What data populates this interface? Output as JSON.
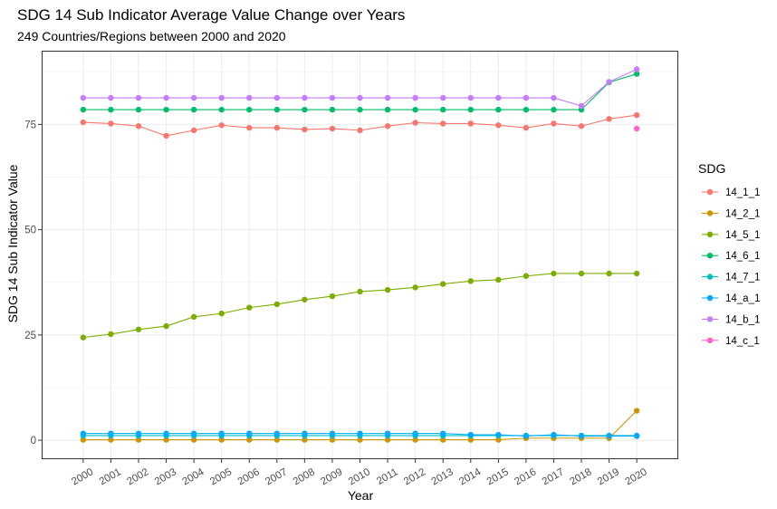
{
  "chart_data": {
    "type": "line",
    "title": "SDG 14 Sub Indicator Average Value Change over Years",
    "subtitle": "249 Countries/Regions between 2000 and 2020",
    "xlabel": "Year",
    "ylabel": "SDG 14 Sub Indicator Value",
    "x": [
      2000,
      2001,
      2002,
      2003,
      2004,
      2005,
      2006,
      2007,
      2008,
      2009,
      2010,
      2011,
      2012,
      2013,
      2014,
      2015,
      2016,
      2017,
      2018,
      2019,
      2020
    ],
    "x_tick_labels": [
      "2000",
      "2001",
      "2002",
      "2003",
      "2004",
      "2005",
      "2006",
      "2007",
      "2008",
      "2009",
      "2010",
      "2011",
      "2012",
      "2013",
      "2014",
      "2015",
      "2016",
      "2017",
      "2018",
      "2019",
      "2020"
    ],
    "y_ticks": [
      0,
      25,
      50,
      75
    ],
    "y_tick_labels": [
      "0",
      "25",
      "50",
      "75"
    ],
    "ylim": [
      -4.5,
      92.5
    ],
    "grid": true,
    "legend": {
      "title": "SDG",
      "position": "right"
    },
    "series": [
      {
        "name": "14_1_1",
        "color": "#F8766D",
        "values": [
          75.5,
          75.2,
          74.6,
          72.3,
          73.6,
          74.8,
          74.2,
          74.2,
          73.8,
          74.0,
          73.6,
          74.6,
          75.4,
          75.2,
          75.2,
          74.8,
          74.2,
          75.2,
          74.6,
          76.3,
          77.2
        ]
      },
      {
        "name": "14_2_1",
        "color": "#CD9600",
        "values": [
          0.1,
          0.1,
          0.1,
          0.1,
          0.1,
          0.1,
          0.1,
          0.1,
          0.1,
          0.1,
          0.1,
          0.1,
          0.1,
          0.1,
          0.1,
          0.1,
          0.5,
          0.5,
          0.5,
          0.5,
          7.0
        ]
      },
      {
        "name": "14_5_1",
        "color": "#7CAE00",
        "values": [
          24.4,
          25.2,
          26.3,
          27.1,
          29.3,
          30.1,
          31.5,
          32.3,
          33.4,
          34.2,
          35.3,
          35.7,
          36.3,
          37.1,
          37.8,
          38.1,
          39.0,
          39.6,
          39.6,
          39.6,
          39.6
        ]
      },
      {
        "name": "14_6_1",
        "color": "#00BE67",
        "values": [
          78.5,
          78.5,
          78.5,
          78.5,
          78.5,
          78.5,
          78.5,
          78.5,
          78.5,
          78.5,
          78.5,
          78.5,
          78.5,
          78.5,
          78.5,
          78.5,
          78.5,
          78.5,
          78.5,
          85.0,
          87.0
        ]
      },
      {
        "name": "14_7_1",
        "color": "#00BFC4",
        "values": [
          1.1,
          1.1,
          1.1,
          1.1,
          1.1,
          1.1,
          1.1,
          1.1,
          1.1,
          1.1,
          1.1,
          1.1,
          1.1,
          1.1,
          1.1,
          1.1,
          1.1,
          1.1,
          1.1,
          1.1,
          1.1
        ]
      },
      {
        "name": "14_a_1",
        "color": "#00A9FF",
        "values": [
          1.6,
          1.6,
          1.6,
          1.6,
          1.6,
          1.6,
          1.6,
          1.6,
          1.6,
          1.6,
          1.6,
          1.6,
          1.6,
          1.6,
          1.3,
          1.3,
          1.0,
          1.3,
          1.0,
          1.0,
          1.0
        ]
      },
      {
        "name": "14_b_1",
        "color": "#C77CFF",
        "values": [
          81.3,
          81.3,
          81.3,
          81.3,
          81.3,
          81.3,
          81.3,
          81.3,
          81.3,
          81.3,
          81.3,
          81.3,
          81.3,
          81.3,
          81.3,
          81.3,
          81.3,
          81.3,
          79.4,
          85.1,
          88.1
        ]
      },
      {
        "name": "14_c_1",
        "color": "#FF61CC",
        "values": [
          null,
          null,
          null,
          null,
          null,
          null,
          null,
          null,
          null,
          null,
          null,
          null,
          null,
          null,
          null,
          null,
          null,
          null,
          null,
          null,
          74.0
        ]
      }
    ]
  }
}
